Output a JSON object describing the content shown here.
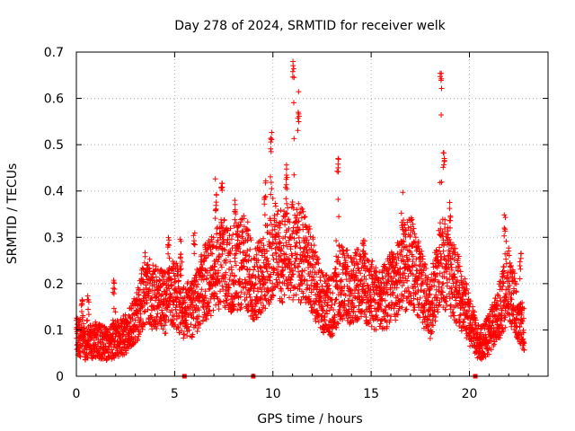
{
  "chart_data": {
    "type": "scatter",
    "title": "Day 278 of 2024, SRMTID for receiver welk",
    "xlabel": "GPS time / hours",
    "ylabel": "SRMTID / TECUs",
    "xlim": [
      0,
      24
    ],
    "ylim": [
      0,
      0.7
    ],
    "xticks": [
      0,
      5,
      10,
      15,
      20
    ],
    "xtick_labels": [
      "0",
      "5",
      "10",
      "15",
      "20"
    ],
    "yticks": [
      0,
      0.1,
      0.2,
      0.3,
      0.4,
      0.5,
      0.6,
      0.7
    ],
    "ytick_labels": [
      "0",
      "0.1",
      "0.2",
      "0.3",
      "0.4",
      "0.5",
      "0.6",
      "0.7"
    ],
    "grid": true,
    "marker": "+",
    "series": [
      {
        "name": "SRMTID",
        "color": "#ff0000",
        "trend": [
          {
            "t": 0.0,
            "y": 0.09
          },
          {
            "t": 0.5,
            "y": 0.07
          },
          {
            "t": 1.0,
            "y": 0.08
          },
          {
            "t": 1.5,
            "y": 0.07
          },
          {
            "t": 2.0,
            "y": 0.08
          },
          {
            "t": 2.5,
            "y": 0.09
          },
          {
            "t": 3.0,
            "y": 0.12
          },
          {
            "t": 3.5,
            "y": 0.19
          },
          {
            "t": 4.0,
            "y": 0.17
          },
          {
            "t": 4.5,
            "y": 0.16
          },
          {
            "t": 5.0,
            "y": 0.18
          },
          {
            "t": 5.5,
            "y": 0.14
          },
          {
            "t": 6.0,
            "y": 0.15
          },
          {
            "t": 6.5,
            "y": 0.2
          },
          {
            "t": 7.0,
            "y": 0.22
          },
          {
            "t": 7.5,
            "y": 0.25
          },
          {
            "t": 8.0,
            "y": 0.22
          },
          {
            "t": 8.5,
            "y": 0.25
          },
          {
            "t": 9.0,
            "y": 0.2
          },
          {
            "t": 9.5,
            "y": 0.22
          },
          {
            "t": 10.0,
            "y": 0.27
          },
          {
            "t": 10.5,
            "y": 0.26
          },
          {
            "t": 11.0,
            "y": 0.27
          },
          {
            "t": 11.5,
            "y": 0.26
          },
          {
            "t": 12.0,
            "y": 0.22
          },
          {
            "t": 12.5,
            "y": 0.16
          },
          {
            "t": 13.0,
            "y": 0.15
          },
          {
            "t": 13.5,
            "y": 0.2
          },
          {
            "t": 14.0,
            "y": 0.19
          },
          {
            "t": 14.5,
            "y": 0.2
          },
          {
            "t": 15.0,
            "y": 0.18
          },
          {
            "t": 15.5,
            "y": 0.16
          },
          {
            "t": 16.0,
            "y": 0.19
          },
          {
            "t": 16.5,
            "y": 0.22
          },
          {
            "t": 17.0,
            "y": 0.25
          },
          {
            "t": 17.5,
            "y": 0.2
          },
          {
            "t": 18.0,
            "y": 0.14
          },
          {
            "t": 18.5,
            "y": 0.25
          },
          {
            "t": 19.0,
            "y": 0.22
          },
          {
            "t": 19.5,
            "y": 0.18
          },
          {
            "t": 20.0,
            "y": 0.12
          },
          {
            "t": 20.5,
            "y": 0.07
          },
          {
            "t": 21.0,
            "y": 0.09
          },
          {
            "t": 21.5,
            "y": 0.14
          },
          {
            "t": 22.0,
            "y": 0.2
          },
          {
            "t": 22.5,
            "y": 0.13
          },
          {
            "t": 22.8,
            "y": 0.1
          }
        ],
        "spikes": [
          {
            "t": 0.3,
            "y": 0.17
          },
          {
            "t": 0.6,
            "y": 0.18
          },
          {
            "t": 1.9,
            "y": 0.22
          },
          {
            "t": 4.7,
            "y": 0.3
          },
          {
            "t": 5.3,
            "y": 0.3
          },
          {
            "t": 6.0,
            "y": 0.32
          },
          {
            "t": 7.1,
            "y": 0.4
          },
          {
            "t": 7.4,
            "y": 0.43
          },
          {
            "t": 8.1,
            "y": 0.38
          },
          {
            "t": 8.7,
            "y": 0.32
          },
          {
            "t": 9.6,
            "y": 0.42
          },
          {
            "t": 9.9,
            "y": 0.52
          },
          {
            "t": 10.7,
            "y": 0.45
          },
          {
            "t": 11.05,
            "y": 0.68
          },
          {
            "t": 11.3,
            "y": 0.58
          },
          {
            "t": 13.3,
            "y": 0.47
          },
          {
            "t": 14.6,
            "y": 0.3
          },
          {
            "t": 16.6,
            "y": 0.36
          },
          {
            "t": 18.55,
            "y": 0.66
          },
          {
            "t": 18.7,
            "y": 0.5
          },
          {
            "t": 19.0,
            "y": 0.37
          },
          {
            "t": 21.8,
            "y": 0.35
          },
          {
            "t": 22.6,
            "y": 0.27
          }
        ],
        "axis_points": [
          {
            "t": 5.5,
            "y": 0
          },
          {
            "t": 9.0,
            "y": 0
          },
          {
            "t": 20.3,
            "y": 0
          }
        ]
      }
    ]
  }
}
